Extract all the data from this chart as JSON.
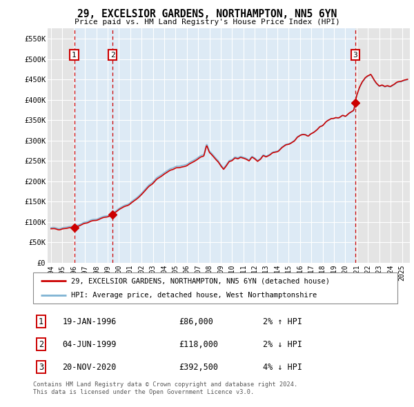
{
  "title": "29, EXCELSIOR GARDENS, NORTHAMPTON, NN5 6YN",
  "subtitle": "Price paid vs. HM Land Registry's House Price Index (HPI)",
  "ylim": [
    0,
    575000
  ],
  "yticks": [
    0,
    50000,
    100000,
    150000,
    200000,
    250000,
    300000,
    350000,
    400000,
    450000,
    500000,
    550000
  ],
  "ytick_labels": [
    "£0",
    "£50K",
    "£100K",
    "£150K",
    "£200K",
    "£250K",
    "£300K",
    "£350K",
    "£400K",
    "£450K",
    "£500K",
    "£550K"
  ],
  "xlim_start": 1993.7,
  "xlim_end": 2025.7,
  "xticks": [
    1994,
    1995,
    1996,
    1997,
    1998,
    1999,
    2000,
    2001,
    2002,
    2003,
    2004,
    2005,
    2006,
    2007,
    2008,
    2009,
    2010,
    2011,
    2012,
    2013,
    2014,
    2015,
    2016,
    2017,
    2018,
    2019,
    2020,
    2021,
    2022,
    2023,
    2024,
    2025
  ],
  "hpi_line_color": "#7fb3d3",
  "price_line_color": "#cc0000",
  "sale_dot_color": "#cc0000",
  "sale_vline_color": "#cc0000",
  "legend_line1": "29, EXCELSIOR GARDENS, NORTHAMPTON, NN5 6YN (detached house)",
  "legend_line2": "HPI: Average price, detached house, West Northamptonshire",
  "transactions": [
    {
      "label": "1",
      "date": "19-JAN-1996",
      "price": 86000,
      "pct": "2%",
      "dir": "↑",
      "x_year": 1996.05
    },
    {
      "label": "2",
      "date": "04-JUN-1999",
      "price": 118000,
      "pct": "2%",
      "dir": "↓",
      "x_year": 1999.43
    },
    {
      "label": "3",
      "date": "20-NOV-2020",
      "price": 392500,
      "pct": "4%",
      "dir": "↓",
      "x_year": 2020.88
    }
  ],
  "footer": "Contains HM Land Registry data © Crown copyright and database right 2024.\nThis data is licensed under the Open Government Licence v3.0.",
  "sale_region_color": "#dce9f5",
  "hatch_region_color": "#e4e4e4",
  "chart_bg_color": "#eef4fb"
}
